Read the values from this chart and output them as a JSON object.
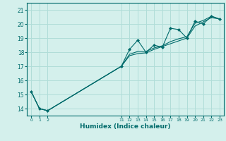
{
  "xlabel": "Humidex (Indice chaleur)",
  "bg_color": "#d4f0ec",
  "grid_color": "#b0ddd8",
  "line_color": "#006b6b",
  "marker_color": "#006b6b",
  "xlim": [
    -0.5,
    23.5
  ],
  "ylim": [
    13.5,
    21.5
  ],
  "yticks": [
    14,
    15,
    16,
    17,
    18,
    19,
    20,
    21
  ],
  "xticks": [
    0,
    1,
    2,
    11,
    12,
    13,
    14,
    15,
    16,
    17,
    18,
    19,
    20,
    21,
    22,
    23
  ],
  "series1_x": [
    0,
    1,
    2,
    11,
    12,
    13,
    14,
    15,
    16,
    17,
    18,
    19,
    20,
    21,
    22,
    23
  ],
  "series1_y": [
    15.2,
    14.0,
    13.85,
    17.0,
    18.2,
    18.85,
    18.0,
    18.5,
    18.35,
    19.7,
    19.6,
    19.0,
    20.2,
    20.0,
    20.55,
    20.35
  ],
  "series2_x": [
    0,
    1,
    2,
    11,
    12,
    13,
    14,
    15,
    16,
    17,
    18,
    19,
    20,
    21,
    22,
    23
  ],
  "series2_y": [
    15.2,
    14.0,
    13.85,
    17.0,
    17.85,
    18.05,
    18.05,
    18.3,
    18.45,
    18.75,
    18.95,
    19.1,
    20.05,
    20.25,
    20.55,
    20.35
  ],
  "series3_x": [
    0,
    1,
    2,
    11,
    12,
    13,
    14,
    15,
    16,
    17,
    18,
    19,
    20,
    21,
    22,
    23
  ],
  "series3_y": [
    15.2,
    14.0,
    13.85,
    17.0,
    17.75,
    17.9,
    17.95,
    18.2,
    18.4,
    18.6,
    18.8,
    19.0,
    19.85,
    20.15,
    20.45,
    20.35
  ]
}
